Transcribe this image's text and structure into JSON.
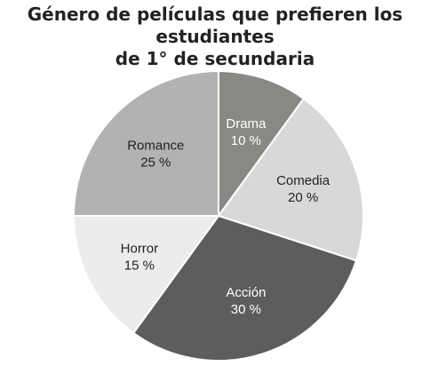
{
  "chart_data": {
    "type": "pie",
    "title": [
      "Género de películas que prefieren los estudiantes",
      "de 1° de secundaria"
    ],
    "slices": [
      {
        "label": "Drama",
        "value": 10,
        "value_text": "10 %",
        "color": "#878985",
        "text_color": "#ffffff"
      },
      {
        "label": "Comedia",
        "value": 20,
        "value_text": "20 %",
        "color": "#d8d8d8",
        "text_color": "#222222"
      },
      {
        "label": "Acción",
        "value": 30,
        "value_text": "30 %",
        "color": "#5d5d5d",
        "text_color": "#ffffff"
      },
      {
        "label": "Horror",
        "value": 15,
        "value_text": "15 %",
        "color": "#ececed",
        "text_color": "#222222"
      },
      {
        "label": "Romance",
        "value": 25,
        "value_text": "25 %",
        "color": "#b3b2b2",
        "text_color": "#222222"
      }
    ],
    "start": "12 o'clock",
    "direction": "clockwise",
    "slice_border_color": "#ffffff"
  }
}
